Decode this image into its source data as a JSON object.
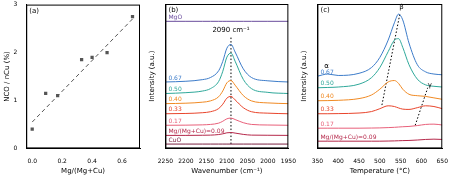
{
  "chart_data": [
    {
      "type": "scatter",
      "title": "(a)",
      "x_label": "Mg/(Mg+Cu)",
      "y_label": "NCO / nCu (%)",
      "xlim": [
        -0.04,
        0.72
      ],
      "xticks": [
        {
          "value": 0,
          "label": "0.0"
        },
        {
          "value": 0.2,
          "label": "0.2"
        },
        {
          "value": 0.4,
          "label": "0.4"
        },
        {
          "value": 0.6,
          "label": "0.6"
        }
      ],
      "ylim": [
        0,
        3
      ],
      "yticks": [
        0,
        1,
        2,
        3
      ],
      "grid": false,
      "series": [
        {
          "type": "scatter",
          "marker": "square",
          "color": "#555555",
          "x": [
            0,
            0.09,
            0.17,
            0.33,
            0.4,
            0.5,
            0.67
          ],
          "values": [
            0.4,
            1.15,
            1.1,
            1.85,
            1.9,
            2.0,
            2.75
          ]
        },
        {
          "type": "line",
          "line_style": "dashed",
          "color": "#555555",
          "x": [
            0,
            0.67
          ],
          "values": [
            0.55,
            2.7
          ]
        }
      ]
    },
    {
      "type": "line",
      "title": "(b)",
      "x_label": "Wavenumber (cm⁻¹)",
      "y_label": "Intensity (a.u.)",
      "xlim": [
        2250,
        1950
      ],
      "xticks": [
        2250,
        2200,
        2150,
        2100,
        2050,
        2000,
        1950
      ],
      "ylim": [
        0,
        10
      ],
      "grid": false,
      "tick_labels": "x",
      "x": [
        2250,
        2200,
        2160,
        2140,
        2120,
        2110,
        2100,
        2090,
        2080,
        2060,
        2040,
        2000,
        1950
      ],
      "series": [
        {
          "name": "MgO",
          "color": "#6a4c9c",
          "values": [
            8.8,
            8.8,
            8.8,
            8.8,
            8.8,
            8.8,
            8.8,
            8.8,
            8.8,
            8.8,
            8.8,
            8.8,
            8.8
          ]
        },
        {
          "name": "0.67",
          "color": "#3d7cc9",
          "values": [
            4.6,
            4.65,
            4.76,
            4.91,
            5.38,
            6.03,
            6.94,
            7.2,
            6.68,
            5.51,
            4.91,
            4.68,
            4.6
          ]
        },
        {
          "name": "0.50",
          "color": "#2fa89a",
          "values": [
            3.8,
            3.86,
            3.97,
            4.14,
            4.64,
            5.34,
            6.32,
            6.6,
            6.04,
            4.78,
            4.14,
            3.88,
            3.8
          ]
        },
        {
          "name": "0.40",
          "color": "#f08a24",
          "values": [
            3.1,
            3.13,
            3.2,
            3.29,
            3.58,
            3.98,
            4.54,
            4.7,
            4.38,
            3.66,
            3.29,
            3.15,
            3.1
          ]
        },
        {
          "name": "0.33",
          "color": "#e8452c",
          "values": [
            2.4,
            2.42,
            2.47,
            2.54,
            2.76,
            3.06,
            3.48,
            3.6,
            3.36,
            2.82,
            2.54,
            2.44,
            2.4
          ]
        },
        {
          "name": "0.17",
          "color": "#e8607a",
          "values": [
            1.6,
            1.61,
            1.63,
            1.66,
            1.75,
            1.88,
            2.05,
            2.1,
            2.0,
            1.78,
            1.66,
            1.62,
            1.6
          ]
        },
        {
          "name": "Mg/(Mg+Cu)=0.09",
          "color": "#b5284a",
          "values": [
            0.9,
            0.9,
            0.91,
            0.92,
            0.96,
            1.01,
            1.08,
            1.1,
            1.06,
            0.97,
            0.92,
            0.91,
            0.9
          ]
        },
        {
          "name": "CuO",
          "color": "#7a2040",
          "values": [
            0.3,
            0.3,
            0.3,
            0.3,
            0.3,
            0.3,
            0.3,
            0.3,
            0.3,
            0.3,
            0.3,
            0.3,
            0.3
          ]
        }
      ],
      "annotations": [
        {
          "text": "2090 cm⁻¹",
          "x": 2090,
          "y": 8.2
        }
      ],
      "guides": [
        {
          "x": [
            2090,
            2090
          ],
          "y": [
            0.3,
            7.8
          ]
        }
      ]
    },
    {
      "type": "line",
      "title": "(c)",
      "x_label": "Temperature (°C)",
      "y_label": "Intensity (a.u.)",
      "xlim": [
        350,
        650
      ],
      "xticks": [
        350,
        400,
        450,
        500,
        550,
        600,
        650
      ],
      "ylim": [
        0,
        10
      ],
      "grid": false,
      "tick_labels": "x",
      "x": [
        350,
        375,
        400,
        450,
        480,
        500,
        520,
        535,
        545,
        555,
        570,
        590,
        610,
        630,
        650
      ],
      "series": [
        {
          "name": "0.67",
          "color": "#3d7cc9",
          "values": [
            5.0,
            5.15,
            5.05,
            5.2,
            5.6,
            6.3,
            7.5,
            8.7,
            9.3,
            8.9,
            7.3,
            5.8,
            5.3,
            5.15,
            5.1
          ]
        },
        {
          "name": "0.50",
          "color": "#2fa89a",
          "values": [
            4.2,
            4.22,
            4.25,
            4.45,
            4.9,
            5.6,
            6.7,
            7.5,
            7.6,
            7.0,
            5.8,
            4.8,
            4.4,
            4.3,
            4.25
          ]
        },
        {
          "name": "0.40",
          "color": "#f08a24",
          "values": [
            3.3,
            3.31,
            3.33,
            3.45,
            3.7,
            4.1,
            4.6,
            4.7,
            4.5,
            4.1,
            3.75,
            3.65,
            3.6,
            3.5,
            3.4
          ]
        },
        {
          "name": "0.33",
          "color": "#e8452c",
          "values": [
            2.4,
            2.4,
            2.41,
            2.45,
            2.55,
            2.75,
            2.95,
            2.9,
            2.8,
            2.72,
            2.7,
            2.82,
            2.95,
            2.9,
            2.75
          ]
        },
        {
          "name": "0.17",
          "color": "#e8607a",
          "values": [
            1.4,
            1.4,
            1.4,
            1.4,
            1.41,
            1.42,
            1.44,
            1.46,
            1.48,
            1.5,
            1.52,
            1.58,
            1.66,
            1.68,
            1.62
          ]
        },
        {
          "name": "Mg/(Mg+Cu)=0.09",
          "color": "#b5284a",
          "values": [
            0.5,
            0.5,
            0.5,
            0.5,
            0.5,
            0.5,
            0.51,
            0.52,
            0.53,
            0.54,
            0.55,
            0.58,
            0.62,
            0.64,
            0.62
          ]
        }
      ],
      "annotations": [
        {
          "text": "α",
          "x": 372,
          "y": 5.7
        },
        {
          "text": "β",
          "x": 552,
          "y": 9.75
        },
        {
          "text": "γ",
          "x": 620,
          "y": 4.4
        }
      ],
      "guides": [
        {
          "x": [
            505,
            548
          ],
          "y": [
            3.0,
            9.3
          ]
        },
        {
          "x": [
            585,
            615
          ],
          "y": [
            1.6,
            4.2
          ]
        }
      ]
    }
  ]
}
